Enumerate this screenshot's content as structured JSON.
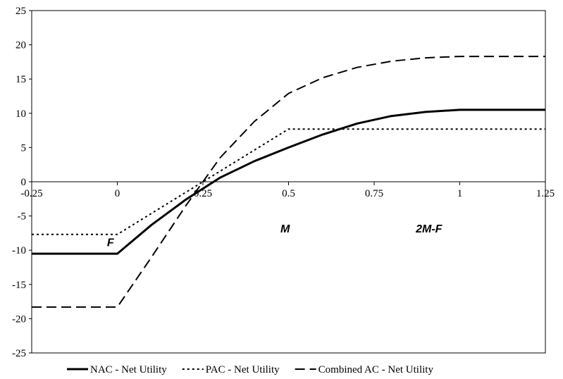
{
  "chart_data": {
    "type": "line",
    "xlim": [
      -0.25,
      1.25
    ],
    "ylim": [
      -25,
      25
    ],
    "x_ticks": [
      -0.25,
      0,
      0.25,
      0.5,
      0.75,
      1,
      1.25
    ],
    "x_tick_labels": [
      "-0.25",
      "0",
      "0.25",
      "0.5",
      "0.75",
      "1",
      "1.25"
    ],
    "y_ticks": [
      -25,
      -20,
      -15,
      -10,
      -5,
      0,
      5,
      10,
      15,
      20,
      25
    ],
    "y_tick_labels": [
      "-25",
      "-20",
      "-15",
      "-10",
      "-5",
      "0",
      "5",
      "10",
      "15",
      "20",
      "25"
    ],
    "grid": false,
    "legend_position": "bottom",
    "annotations": [
      {
        "text": "F",
        "x": -0.02,
        "y": -9.4
      },
      {
        "text": "M",
        "x": 0.49,
        "y": -7.4
      },
      {
        "text": "2M-F",
        "x": 0.91,
        "y": -7.4
      }
    ],
    "series": [
      {
        "name": "NAC - Net Utility",
        "style": "solid",
        "color": "#000000",
        "x": [
          -0.25,
          0,
          0.1,
          0.2,
          0.3,
          0.4,
          0.5,
          0.6,
          0.7,
          0.8,
          0.9,
          1.0,
          1.25
        ],
        "y": [
          -10.5,
          -10.5,
          -6.3,
          -2.6,
          0.6,
          3.0,
          5.0,
          6.9,
          8.5,
          9.6,
          10.2,
          10.5,
          10.5
        ]
      },
      {
        "name": "PAC - Net Utility",
        "style": "dotted",
        "color": "#000000",
        "x": [
          -0.25,
          0,
          0.5,
          1.25
        ],
        "y": [
          -7.7,
          -7.7,
          7.7,
          7.7
        ]
      },
      {
        "name": "Combined AC - Net Utility",
        "style": "dashed",
        "color": "#000000",
        "x": [
          -0.25,
          0,
          0.1,
          0.2,
          0.3,
          0.4,
          0.5,
          0.6,
          0.7,
          0.8,
          0.9,
          1.0,
          1.25
        ],
        "y": [
          -18.3,
          -18.3,
          -11.0,
          -3.5,
          3.5,
          8.8,
          12.9,
          15.2,
          16.7,
          17.6,
          18.1,
          18.3,
          18.3
        ]
      }
    ]
  }
}
